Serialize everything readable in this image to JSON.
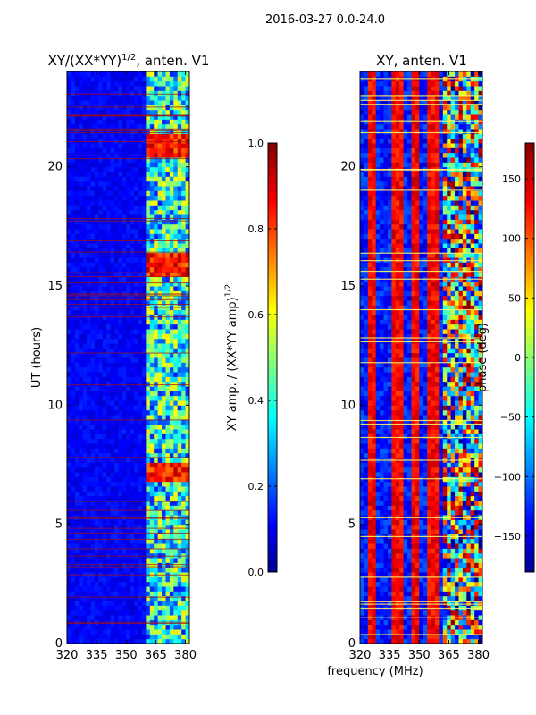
{
  "suptitle": "2016-03-27 0.0-24.0",
  "shared_xlabel": "frequency (MHz)",
  "chart_data": [
    {
      "type": "heatmap",
      "title": "XY/(XX*YY)^1/2, anten. V1",
      "title_main": "XY/(XX*YY)",
      "title_sup": "1/2",
      "title_tail": ", anten. V1",
      "xlabel": "frequency (MHz)",
      "ylabel": "UT (hours)",
      "xlim": [
        320,
        382
      ],
      "ylim": [
        0,
        24
      ],
      "xticks": [
        320,
        335,
        350,
        365,
        380
      ],
      "yticks": [
        0,
        5,
        10,
        15,
        20
      ],
      "colorbar": {
        "label_main": "XY amp. / (XX*YY amp)",
        "label_sup": "1/2",
        "range": [
          0.0,
          1.0
        ],
        "ticks": [
          "0.0",
          "0.2",
          "0.4",
          "0.6",
          "0.8",
          "1.0"
        ],
        "tick_values": [
          0.0,
          0.2,
          0.4,
          0.6,
          0.8,
          1.0
        ],
        "colormap": "jet"
      },
      "bright_bands_hours": [
        7.0,
        7.2,
        15.8,
        16.0,
        20.8,
        21.0
      ],
      "active_band_mhz": [
        360,
        382
      ]
    },
    {
      "type": "heatmap",
      "title": "XY, anten. V1",
      "xlabel": "frequency (MHz)",
      "ylabel": "",
      "xlim": [
        320,
        382
      ],
      "ylim": [
        0,
        24
      ],
      "xticks": [
        320,
        335,
        350,
        365,
        380
      ],
      "yticks": [
        0,
        5,
        10,
        15,
        20
      ],
      "colorbar": {
        "label_main": "phase (deg)",
        "label_sup": "",
        "range": [
          -180,
          180
        ],
        "ticks": [
          "−150",
          "−100",
          "−50",
          "0",
          "50",
          "100",
          "150"
        ],
        "tick_values": [
          -150,
          -100,
          -50,
          0,
          50,
          100,
          150
        ],
        "colormap": "jet"
      },
      "stripe_centers_mhz": [
        326,
        339,
        348,
        357
      ]
    }
  ],
  "colors": {
    "jet_dark_blue": "#00008f",
    "jet_blue": "#0000ff",
    "jet_cyan": "#00ffff",
    "jet_yellow": "#ffff00",
    "jet_red": "#ff0000",
    "jet_dark_red": "#800000"
  }
}
